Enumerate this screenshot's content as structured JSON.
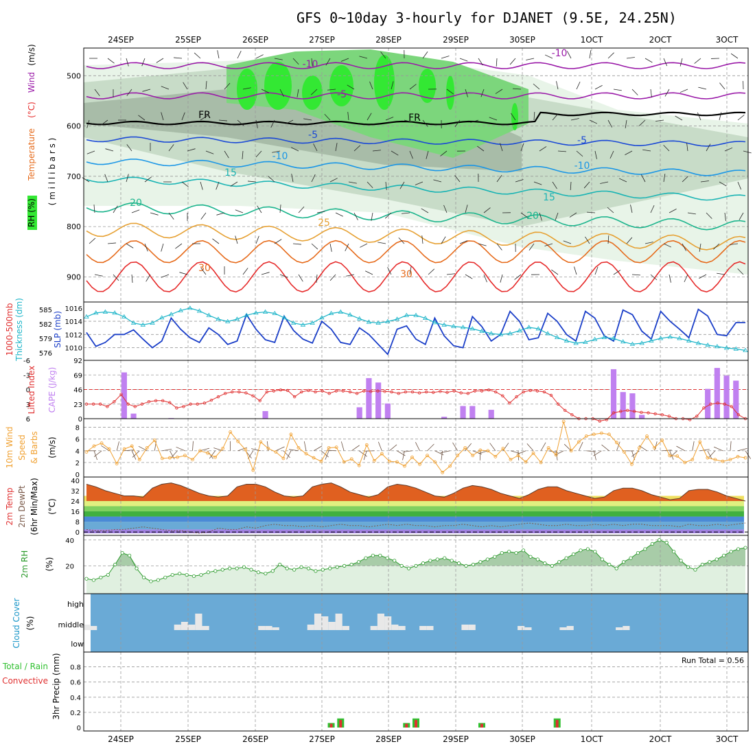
{
  "title": "GFS 0~10day 3-hourly for DJANET (9.5E, 24.25N)",
  "colors": {
    "rh_light": "#e8f4e8",
    "rh_mid": "#c8dcc8",
    "rh_dark": "#a8bca8",
    "rh_green": "#7cd67c",
    "rh_bright": "#33e833",
    "temp_purple": "#9a1aa8",
    "temp_blue_dark": "#1a48d6",
    "temp_blue": "#1a96e6",
    "temp_teal": "#1ab4b4",
    "temp_green": "#1ab48c",
    "temp_gold": "#e6a032",
    "temp_orange": "#e66a1a",
    "temp_red": "#e62a2a",
    "slp": "#1a3ec8",
    "thickness": "#1ab4c8",
    "cape": "#c080f0",
    "lifted": "#e03030",
    "wind10": "#f0a030",
    "cloud": "#6aaad6",
    "precip_green": "#30c030",
    "precip_red": "#e03030"
  },
  "chart_data": [
    {
      "type": "heatmap",
      "panel": "upper-air",
      "dates": [
        "24SEP",
        "25SEP",
        "26SEP",
        "27SEP",
        "28SEP",
        "29SEP",
        "30SEP",
        "1OCT",
        "2OCT",
        "3OCT"
      ],
      "ylabel_parts": [
        "RH (%)",
        "Temperature",
        "(°C)",
        "Wind",
        "(m/s)"
      ],
      "yunit": "( m i l l i b a r s )",
      "yticks": [
        "500",
        "600",
        "700",
        "800",
        "900"
      ],
      "ylim": [
        445,
        950
      ],
      "contour_labels": [
        {
          "text": "-10",
          "group": "purple"
        },
        {
          "text": "-10",
          "group": "purple"
        },
        {
          "text": "-5",
          "group": "purple"
        },
        {
          "text": "FR",
          "group": "black"
        },
        {
          "text": "FR",
          "group": "black"
        },
        {
          "text": "-5",
          "group": "blue_dark"
        },
        {
          "text": "-5",
          "group": "blue_dark"
        },
        {
          "text": "-10",
          "group": "blue"
        },
        {
          "text": "-10",
          "group": "blue"
        },
        {
          "text": "15",
          "group": "teal"
        },
        {
          "text": "15",
          "group": "teal"
        },
        {
          "text": "20",
          "group": "green"
        },
        {
          "text": "20",
          "group": "green"
        },
        {
          "text": "25",
          "group": "gold"
        },
        {
          "text": "30",
          "group": "orange"
        },
        {
          "text": "30",
          "group": "orange"
        }
      ]
    },
    {
      "type": "line",
      "panel": "slp-thickness",
      "ylabel_left": [
        "1000-500mb",
        "Thickness (dm)"
      ],
      "ylabel_right": "SLP (mb)",
      "ylim_left": [
        575,
        586
      ],
      "ylim_right": [
        1008.5,
        1016.5
      ],
      "yticks_left": [
        "585",
        "582",
        "579",
        "576"
      ],
      "yticks_right": [
        "1016",
        "1014",
        "1012",
        "1010"
      ],
      "series": [
        {
          "name": "SLP",
          "axis": "right",
          "values": [
            1012.3,
            1010.2,
            1010.8,
            1012.0,
            1012.0,
            1012.7,
            1011.3,
            1010.0,
            1011.0,
            1014.5,
            1012.8,
            1011.5,
            1010.8,
            1013.0,
            1012.0,
            1010.5,
            1011.0,
            1015.0,
            1012.8,
            1011.2,
            1010.8,
            1014.8,
            1012.6,
            1011.3,
            1010.7,
            1014.0,
            1012.8,
            1010.8,
            1010.5,
            1013.0,
            1012.0,
            1010.5,
            1009.0,
            1012.8,
            1013.3,
            1011.3,
            1010.5,
            1014.5,
            1011.8,
            1010.3,
            1010.0,
            1014.7,
            1013.2,
            1011.0,
            1012.0,
            1015.5,
            1014.0,
            1011.2,
            1011.5,
            1015.2,
            1014.0,
            1012.0,
            1011.0,
            1015.5,
            1014.5,
            1011.8,
            1011.0,
            1015.7,
            1015.0,
            1012.5,
            1011.3,
            1015.5,
            1014.0,
            1012.8,
            1011.5,
            1015.8,
            1014.8,
            1012.0,
            1011.8,
            1013.8,
            1013.8
          ]
        },
        {
          "name": "Thickness",
          "axis": "left",
          "values": [
            583.5,
            584.3,
            584.5,
            584.3,
            583.5,
            582.2,
            581.8,
            582.2,
            583.3,
            584.0,
            584.8,
            585.3,
            584.7,
            583.8,
            583.0,
            582.5,
            583.0,
            583.8,
            584.3,
            584.5,
            584.2,
            583.3,
            582.2,
            581.8,
            582.2,
            583.3,
            584.2,
            584.5,
            583.9,
            583.1,
            582.4,
            582.2,
            582.5,
            583.0,
            583.8,
            583.8,
            583.2,
            582.3,
            581.8,
            581.5,
            581.3,
            581.0,
            580.5,
            580.0,
            579.8,
            580.0,
            580.6,
            581.3,
            581.0,
            580.0,
            579.2,
            578.5,
            578.0,
            578.2,
            578.8,
            579.2,
            579.0,
            578.3,
            577.8,
            578.0,
            578.5,
            579.0,
            579.3,
            579.0,
            578.5,
            578.0,
            577.6,
            577.3,
            577.0,
            576.8,
            576.5
          ]
        }
      ]
    },
    {
      "type": "bar",
      "panel": "cape-lifted-index",
      "ylabel_left": "Lifted Index",
      "ylabel_right": "CAPE (J/kg)",
      "yticks_left": [
        "-6",
        "-3",
        "0",
        "3",
        "6"
      ],
      "yticks_right": [
        "92",
        "69",
        "46",
        "23",
        "0"
      ],
      "ylim_cape": [
        0,
        92
      ],
      "cape_values": [
        0,
        0,
        0,
        0,
        73,
        8,
        0,
        0,
        0,
        1,
        0,
        0,
        0,
        0,
        0,
        0,
        0,
        0,
        0,
        12,
        0,
        0,
        0,
        0,
        0,
        0,
        0,
        0,
        0,
        18,
        64,
        57,
        24,
        0,
        0,
        0,
        0,
        0,
        3,
        0,
        20,
        20,
        0,
        14,
        0,
        0,
        0,
        0,
        0,
        0,
        0,
        0,
        0,
        0,
        0,
        0,
        78,
        42,
        40,
        6,
        0,
        0,
        0,
        0,
        0,
        0,
        47,
        80,
        68,
        60,
        0
      ],
      "lifted_values": [
        3,
        3,
        3,
        3.5,
        2.5,
        1,
        3,
        3.5,
        3,
        2.5,
        2.3,
        2.3,
        2.7,
        3.8,
        3.5,
        3,
        3,
        2.8,
        2.2,
        1.5,
        0.8,
        0.5,
        0.5,
        0.7,
        1.3,
        2.3,
        0.5,
        0.3,
        0.1,
        0.2,
        1.5,
        0.5,
        0.2,
        0.5,
        0.3,
        0.8,
        0.3,
        0.3,
        0.5,
        0.8,
        0.3,
        0.4,
        0.3,
        0.4,
        0.5,
        0.8,
        0.5,
        0.5,
        0.7,
        0.5,
        0.6,
        0.4,
        0.6,
        0.3,
        0.7,
        0.8,
        0.3,
        0.3,
        0.1,
        0.5,
        1.3,
        2.8,
        1.5,
        0.5,
        0.2,
        0.3,
        0.5,
        1.2,
        3.0,
        4.3,
        5.2,
        6,
        6,
        6,
        6.5,
        6.2,
        4.8,
        4.5,
        4.3,
        4.5,
        4.7,
        4.8,
        5.0,
        5.2,
        5.5,
        6.0,
        6.0,
        6.2,
        5.5,
        3.8,
        3.0,
        2.8,
        3.0,
        3.5,
        5.2,
        6.0
      ]
    },
    {
      "type": "line",
      "panel": "wind10m",
      "ylabel": [
        "10m Wind",
        "Speed",
        "& Barbs",
        "(m/s)"
      ],
      "yticks": [
        "8",
        "6",
        "4",
        "2",
        "0"
      ],
      "ylim": [
        0,
        9
      ],
      "series": [
        {
          "name": "10m Wind Speed",
          "values": [
            3.8,
            4.8,
            5.3,
            4.3,
            1.8,
            4.3,
            4.8,
            2.5,
            4.5,
            5.8,
            2.7,
            2.8,
            2.9,
            3.2,
            2.5,
            4.0,
            3.6,
            2.9,
            4.4,
            7.2,
            5.6,
            4.2,
            0.7,
            5.5,
            4.4,
            3.8,
            2.7,
            6.8,
            4.5,
            3.5,
            2.8,
            2.2,
            4.5,
            4.6,
            2.1,
            2.6,
            1.5,
            5.0,
            2.3,
            3.5,
            2.2,
            2.1,
            1.4,
            2.9,
            1.7,
            3.2,
            2.1,
            0.3,
            1.4,
            3.2,
            4.5,
            3.2,
            4.1,
            4.0,
            3.0,
            4.4,
            2.5,
            3.2,
            2.1,
            3.6,
            2.0,
            4.5,
            3.3,
            9.0,
            4.0,
            5.5,
            6.5,
            6.8,
            7.0,
            6.8,
            5.4,
            3.8,
            1.7,
            4.5,
            6.5,
            4.5,
            5.8,
            3.2,
            3.1,
            2.0,
            2.5,
            5.5,
            2.8,
            2.5,
            2.2,
            2.5,
            3.0,
            2.8
          ]
        }
      ]
    },
    {
      "type": "area",
      "panel": "temp2m",
      "ylabel": [
        "2m Temp",
        "2m DewPt",
        "(6hr Min/Max)",
        "(°C)"
      ],
      "yticks": [
        "40",
        "32",
        "24",
        "16",
        "8",
        "0"
      ],
      "ylim": [
        -1,
        41
      ],
      "series": [
        {
          "name": "2m Temp",
          "values": [
            37,
            35,
            32,
            30,
            28,
            28,
            27,
            34,
            37,
            38,
            36,
            33,
            30,
            28,
            27,
            28,
            35,
            37,
            37,
            35,
            31,
            28,
            27,
            28,
            35,
            37,
            38,
            35,
            31,
            29,
            27,
            29,
            35,
            37,
            36,
            34,
            31,
            28,
            27,
            30,
            34,
            36,
            35,
            33,
            30,
            28,
            26,
            29,
            33,
            35,
            35,
            32,
            30,
            28,
            26,
            27,
            32,
            34,
            34,
            32,
            29,
            27,
            25,
            26,
            32,
            33,
            33,
            31,
            28,
            26,
            24
          ]
        },
        {
          "name": "2m DewPt",
          "values": [
            2,
            1,
            1,
            2,
            2,
            3,
            4,
            3,
            2,
            1,
            1,
            0,
            -1,
            0,
            3,
            2,
            2,
            4,
            3,
            5,
            6,
            5,
            5,
            4,
            5,
            4,
            5,
            6,
            5,
            5,
            4,
            5,
            6,
            5,
            6,
            5,
            5,
            4,
            5,
            5,
            6,
            5,
            4,
            5,
            4,
            5,
            6,
            7,
            6,
            5,
            5,
            6,
            5,
            5,
            6,
            5,
            6,
            5,
            6,
            6,
            5,
            5,
            5,
            4,
            6,
            5,
            5,
            6,
            5,
            6,
            7
          ]
        }
      ]
    },
    {
      "type": "area",
      "panel": "rh2m",
      "ylabel": [
        "2m RH",
        "(%)"
      ],
      "yticks": [
        "40",
        "20"
      ],
      "ylim": [
        0,
        42
      ],
      "series": [
        {
          "name": "2m RH",
          "values": [
            10,
            9,
            11,
            13,
            21,
            30,
            28,
            18,
            11,
            8,
            9,
            11,
            13,
            14,
            13,
            12,
            13,
            15,
            16,
            17,
            18,
            18,
            19,
            17,
            15,
            14,
            16,
            21,
            18,
            17,
            19,
            18,
            16,
            17,
            18,
            19,
            20,
            21,
            23,
            26,
            28,
            28,
            26,
            24,
            20,
            18,
            20,
            22,
            24,
            25,
            26,
            24,
            22,
            20,
            21,
            23,
            25,
            27,
            30,
            31,
            30,
            32,
            27,
            25,
            22,
            20,
            23,
            26,
            29,
            32,
            33,
            31,
            25,
            21,
            18,
            23,
            26,
            30,
            33,
            37,
            40,
            38,
            31,
            24,
            19,
            17,
            21,
            23,
            25,
            28,
            31,
            33,
            34
          ]
        }
      ]
    },
    {
      "type": "bar",
      "panel": "cloud-cover",
      "ylabel": [
        "Cloud Cover",
        "(%)"
      ],
      "ytick_labels": [
        "high",
        "middle",
        "low"
      ],
      "values": [
        4,
        3,
        0,
        0,
        0,
        0,
        0,
        0,
        0,
        0,
        0,
        0,
        0,
        4,
        6,
        4,
        12,
        3,
        0,
        0,
        0,
        0,
        0,
        0,
        0,
        3,
        3,
        2,
        0,
        0,
        0,
        0,
        4,
        12,
        10,
        6,
        12,
        3,
        0,
        0,
        0,
        3,
        12,
        10,
        4,
        3,
        0,
        0,
        3,
        3,
        0,
        0,
        0,
        0,
        4,
        4,
        0,
        0,
        0,
        0,
        0,
        0,
        3,
        2,
        0,
        0,
        0,
        0,
        2,
        3,
        0,
        0,
        0,
        0,
        0,
        0,
        2,
        3,
        0,
        0,
        0,
        0,
        0,
        0,
        0,
        0,
        0,
        0,
        0,
        0,
        0,
        0,
        0,
        0,
        0
      ]
    },
    {
      "type": "bar",
      "panel": "precip",
      "ylabel": [
        "Total / Rain",
        "Convective",
        "3hr Precip (mm)"
      ],
      "yticks": [
        "0.8",
        "0.6",
        "0.4",
        "0.2",
        "0"
      ],
      "ylim": [
        0,
        0.95
      ],
      "run_total_label": "Run Total = 0.56",
      "bars": [
        {
          "date": "27SEP",
          "time_index": 26,
          "total": 0.06,
          "convective": 0.05
        },
        {
          "date": "27SEP",
          "time_index": 27,
          "total": 0.12,
          "convective": 0.1
        },
        {
          "date": "28SEP",
          "time_index": 34,
          "total": 0.06,
          "convective": 0.05
        },
        {
          "date": "28SEP",
          "time_index": 35,
          "total": 0.12,
          "convective": 0.1
        },
        {
          "date": "29SEP",
          "time_index": 42,
          "total": 0.06,
          "convective": 0.05
        },
        {
          "date": "30SEP",
          "time_index": 50,
          "total": 0.12,
          "convective": 0.1
        }
      ]
    }
  ]
}
